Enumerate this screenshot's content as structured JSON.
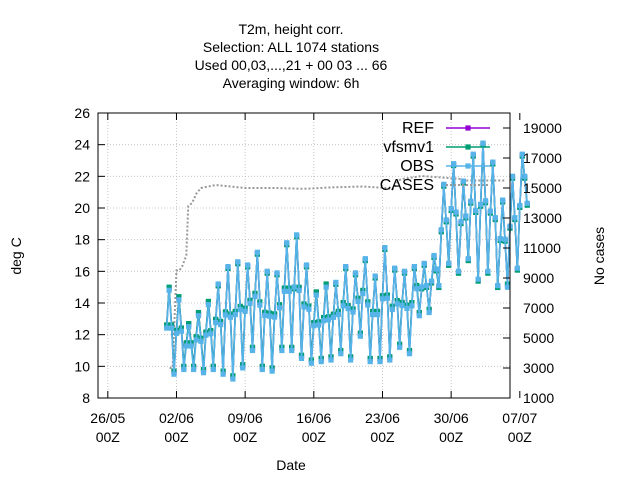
{
  "chart_data": {
    "type": "line",
    "title_lines": [
      "T2m, height corr.",
      "Selection: ALL   1074 stations",
      "Used  00,03,...,21  + 00 03 ... 66",
      "Averaging window:  6h"
    ],
    "xlabel": "Date",
    "ylabel": "deg C",
    "y2label": "No cases",
    "xlim_days": [
      -7,
      35
    ],
    "ylim": [
      8,
      26
    ],
    "y2lim": [
      1000,
      20000
    ],
    "grid": true,
    "legend_position": "top-right",
    "x_ticks": [
      {
        "day": -6,
        "date": "26/05",
        "hour": "00Z"
      },
      {
        "day": 1,
        "date": "02/06",
        "hour": "00Z"
      },
      {
        "day": 8,
        "date": "09/06",
        "hour": "00Z"
      },
      {
        "day": 15,
        "date": "16/06",
        "hour": "00Z"
      },
      {
        "day": 22,
        "date": "23/06",
        "hour": "00Z"
      },
      {
        "day": 29,
        "date": "30/06",
        "hour": "00Z"
      },
      {
        "day": 36,
        "date": "07/07",
        "hour": "00Z"
      }
    ],
    "y_ticks": [
      "8",
      "10",
      "12",
      "14",
      "16",
      "18",
      "20",
      "22",
      "24",
      "26"
    ],
    "y2_ticks": [
      "1000",
      "3000",
      "5000",
      "7000",
      "9000",
      "11000",
      "13000",
      "15000",
      "17000",
      "19000"
    ],
    "day_maxima": [
      14.8,
      14.2,
      12.5,
      13.2,
      13.9,
      15.2,
      16.3,
      16.6,
      16.4,
      17.2,
      16.0,
      15.9,
      17.8,
      18.3,
      16.4,
      14.5,
      15.0,
      15.3,
      16.3,
      15.9,
      16.8,
      15.7,
      17.5,
      16.2,
      16.0,
      16.3,
      16.5,
      17.0,
      21.5,
      22.8,
      21.7,
      23.4,
      24.1,
      22.9,
      20.5,
      22.0,
      23.4
    ],
    "day_minima": [
      9.5,
      9.8,
      9.8,
      9.6,
      9.8,
      9.5,
      9.2,
      9.9,
      11.0,
      9.8,
      9.7,
      11.0,
      11.0,
      10.5,
      10.2,
      10.3,
      10.4,
      10.8,
      10.4,
      11.9,
      10.3,
      10.3,
      10.4,
      11.2,
      10.8,
      13.2,
      13.4,
      15.1,
      16.5,
      16.0,
      16.8,
      15.5,
      16.0,
      15.1,
      15.0,
      16.2,
      20.3
    ],
    "cases_days": [
      0.3,
      0.6,
      1.0,
      1.3,
      1.6,
      2.0,
      2.2,
      2.6,
      3.0,
      3.5,
      5,
      8,
      11,
      14,
      17,
      20,
      22.5,
      23.0,
      23.2,
      23.6,
      24,
      26,
      28,
      30,
      30.6,
      33,
      34.5
    ],
    "cases_values": [
      3000,
      3000,
      9500,
      9500,
      9800,
      10500,
      13800,
      14000,
      14600,
      15000,
      15200,
      15000,
      15000,
      14950,
      15050,
      15100,
      15000,
      14900,
      15000,
      15500,
      15600,
      15800,
      15700,
      15600,
      15500,
      15500,
      15500
    ],
    "series": [
      {
        "name": "REF",
        "color": "#9400d3",
        "marker": "filled-square"
      },
      {
        "name": "vfsmv1",
        "color": "#009e73",
        "marker": "filled-square"
      },
      {
        "name": "OBS",
        "color": "#56b4e9",
        "marker": "filled-square"
      },
      {
        "name": "CASES",
        "color": "#999999",
        "dash": "dotted"
      }
    ]
  }
}
